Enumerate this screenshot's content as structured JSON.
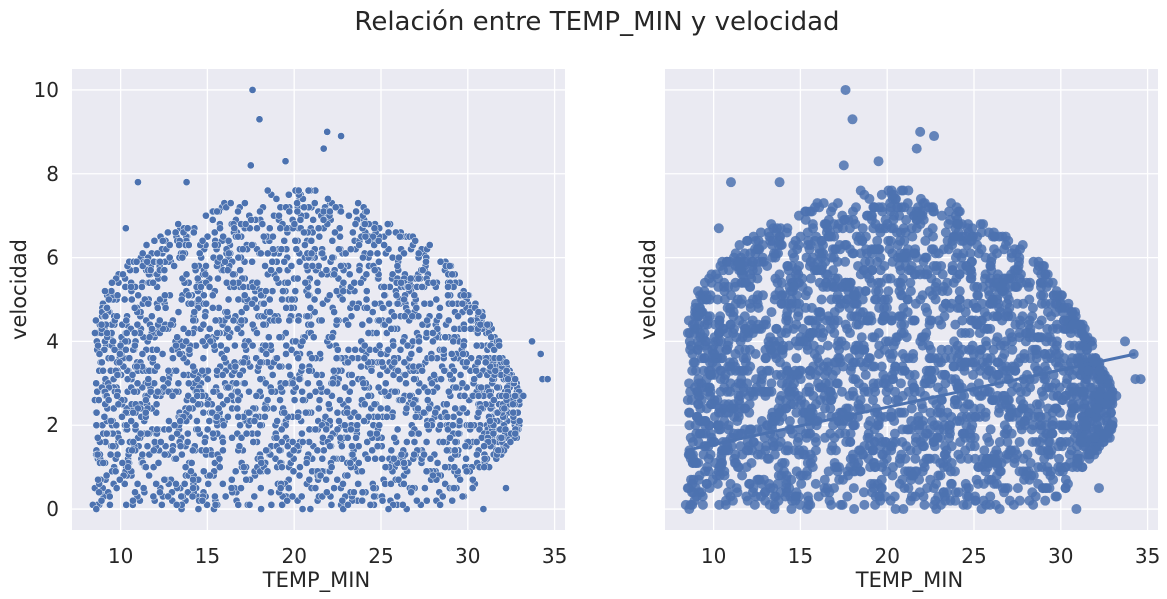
{
  "figure": {
    "title": "Relación entre TEMP_MIN y velocidad"
  },
  "colors": {
    "axes_background": "#eaeaf2",
    "grid": "#ffffff",
    "scatter_points": "#4c72b0",
    "scatter_edge": "#ffffff",
    "regression_points": "#4c72b0",
    "regression_line": "#4c72b0",
    "text": "#262626"
  },
  "chart_data": [
    {
      "type": "scatter",
      "panel": "left",
      "xlabel": "TEMP_MIN",
      "ylabel": "velocidad",
      "xlim": [
        7.2,
        35.6
      ],
      "ylim": [
        -0.5,
        10.5
      ],
      "xticks": [
        10,
        15,
        20,
        25,
        30,
        35
      ],
      "yticks": [
        0,
        2,
        4,
        6,
        8,
        10
      ],
      "grid": true,
      "legend": "none",
      "points_note": "dense cloud of many thousands of observations; envelope approximated",
      "envelope": {
        "x": [
          8.5,
          10,
          12,
          14,
          16,
          18,
          20,
          22,
          24,
          26,
          28,
          30,
          31,
          32,
          33
        ],
        "y_max": [
          4.5,
          5.8,
          6.5,
          7.0,
          7.3,
          7.6,
          7.7,
          7.6,
          7.2,
          6.7,
          6.3,
          5.3,
          4.7,
          3.8,
          2.8
        ],
        "y_min": [
          0,
          0,
          0,
          0,
          0,
          0,
          0,
          0,
          0,
          0,
          0,
          0.3,
          0.8,
          1.3,
          1.8
        ]
      },
      "outliers": [
        {
          "x": 17.6,
          "y": 10.0
        },
        {
          "x": 18.0,
          "y": 9.3
        },
        {
          "x": 21.9,
          "y": 9.0
        },
        {
          "x": 22.7,
          "y": 8.9
        },
        {
          "x": 21.7,
          "y": 8.6
        },
        {
          "x": 19.5,
          "y": 8.3
        },
        {
          "x": 17.5,
          "y": 8.2
        },
        {
          "x": 11.0,
          "y": 7.8
        },
        {
          "x": 13.8,
          "y": 7.8
        },
        {
          "x": 33.7,
          "y": 4.0
        },
        {
          "x": 34.2,
          "y": 3.7
        },
        {
          "x": 34.3,
          "y": 3.1
        },
        {
          "x": 34.6,
          "y": 3.1
        },
        {
          "x": 33.2,
          "y": 2.7
        },
        {
          "x": 32.2,
          "y": 0.5
        },
        {
          "x": 30.9,
          "y": 0.0
        },
        {
          "x": 8.4,
          "y": 0.1
        },
        {
          "x": 8.6,
          "y": 0.0
        },
        {
          "x": 8.7,
          "y": 0.7
        },
        {
          "x": 9.0,
          "y": 1.1
        },
        {
          "x": 9.2,
          "y": 1.8
        },
        {
          "x": 8.9,
          "y": 4.4
        },
        {
          "x": 9.1,
          "y": 5.2
        },
        {
          "x": 9.5,
          "y": 5.4
        },
        {
          "x": 10.3,
          "y": 6.7
        }
      ]
    },
    {
      "type": "scatter",
      "panel": "right",
      "xlabel": "TEMP_MIN",
      "ylabel": "velocidad",
      "xlim": [
        7.2,
        35.6
      ],
      "ylim": [
        -0.5,
        10.5
      ],
      "xticks": [
        10,
        15,
        20,
        25,
        30,
        35
      ],
      "yticks": [
        0,
        2,
        4,
        6,
        8,
        10
      ],
      "grid": true,
      "legend": "none",
      "points_note": "same data drawn with larger markers plus linear regression fit",
      "regression_line": {
        "x": [
          8.4,
          34.3
        ],
        "y": [
          1.4,
          3.7
        ]
      },
      "envelope": {
        "x": [
          8.5,
          10,
          12,
          14,
          16,
          18,
          20,
          22,
          24,
          26,
          28,
          30,
          31,
          32,
          33
        ],
        "y_max": [
          4.5,
          5.8,
          6.5,
          7.0,
          7.3,
          7.6,
          7.7,
          7.6,
          7.2,
          6.7,
          6.3,
          5.3,
          4.7,
          3.8,
          2.8
        ],
        "y_min": [
          0,
          0,
          0,
          0,
          0,
          0,
          0,
          0,
          0,
          0,
          0,
          0.3,
          0.8,
          1.3,
          1.8
        ]
      },
      "outliers": [
        {
          "x": 17.6,
          "y": 10.0
        },
        {
          "x": 18.0,
          "y": 9.3
        },
        {
          "x": 21.9,
          "y": 9.0
        },
        {
          "x": 22.7,
          "y": 8.9
        },
        {
          "x": 21.7,
          "y": 8.6
        },
        {
          "x": 19.5,
          "y": 8.3
        },
        {
          "x": 17.5,
          "y": 8.2
        },
        {
          "x": 11.0,
          "y": 7.8
        },
        {
          "x": 13.8,
          "y": 7.8
        },
        {
          "x": 33.7,
          "y": 4.0
        },
        {
          "x": 34.2,
          "y": 3.7
        },
        {
          "x": 34.3,
          "y": 3.1
        },
        {
          "x": 34.6,
          "y": 3.1
        },
        {
          "x": 33.2,
          "y": 2.7
        },
        {
          "x": 32.2,
          "y": 0.5
        },
        {
          "x": 30.9,
          "y": 0.0
        },
        {
          "x": 8.4,
          "y": 0.1
        },
        {
          "x": 8.6,
          "y": 0.0
        },
        {
          "x": 8.7,
          "y": 0.7
        },
        {
          "x": 9.0,
          "y": 1.1
        },
        {
          "x": 9.2,
          "y": 1.8
        },
        {
          "x": 8.9,
          "y": 4.4
        },
        {
          "x": 9.1,
          "y": 5.2
        },
        {
          "x": 9.5,
          "y": 5.4
        },
        {
          "x": 10.3,
          "y": 6.7
        }
      ]
    }
  ]
}
